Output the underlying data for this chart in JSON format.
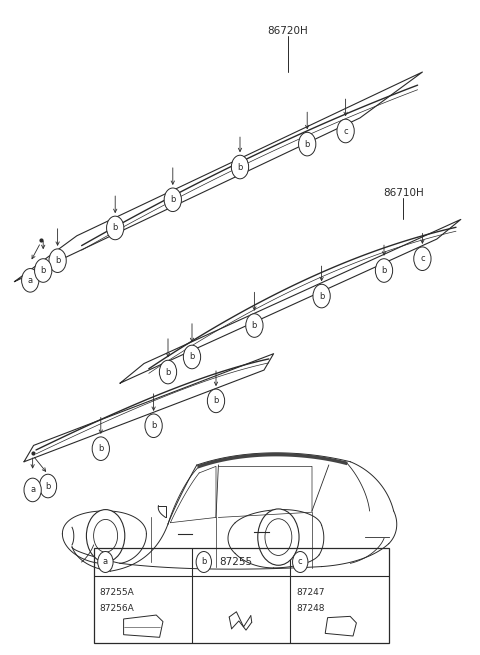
{
  "bg_color": "#ffffff",
  "lc": "#2a2a2a",
  "label_86720H": "86720H",
  "label_86710H": "86710H",
  "part_a_codes": [
    "87255A",
    "87256A"
  ],
  "part_b_code": "87255",
  "part_c_codes": [
    "87247",
    "87248"
  ],
  "fig_width": 4.8,
  "fig_height": 6.55,
  "dpi": 100
}
